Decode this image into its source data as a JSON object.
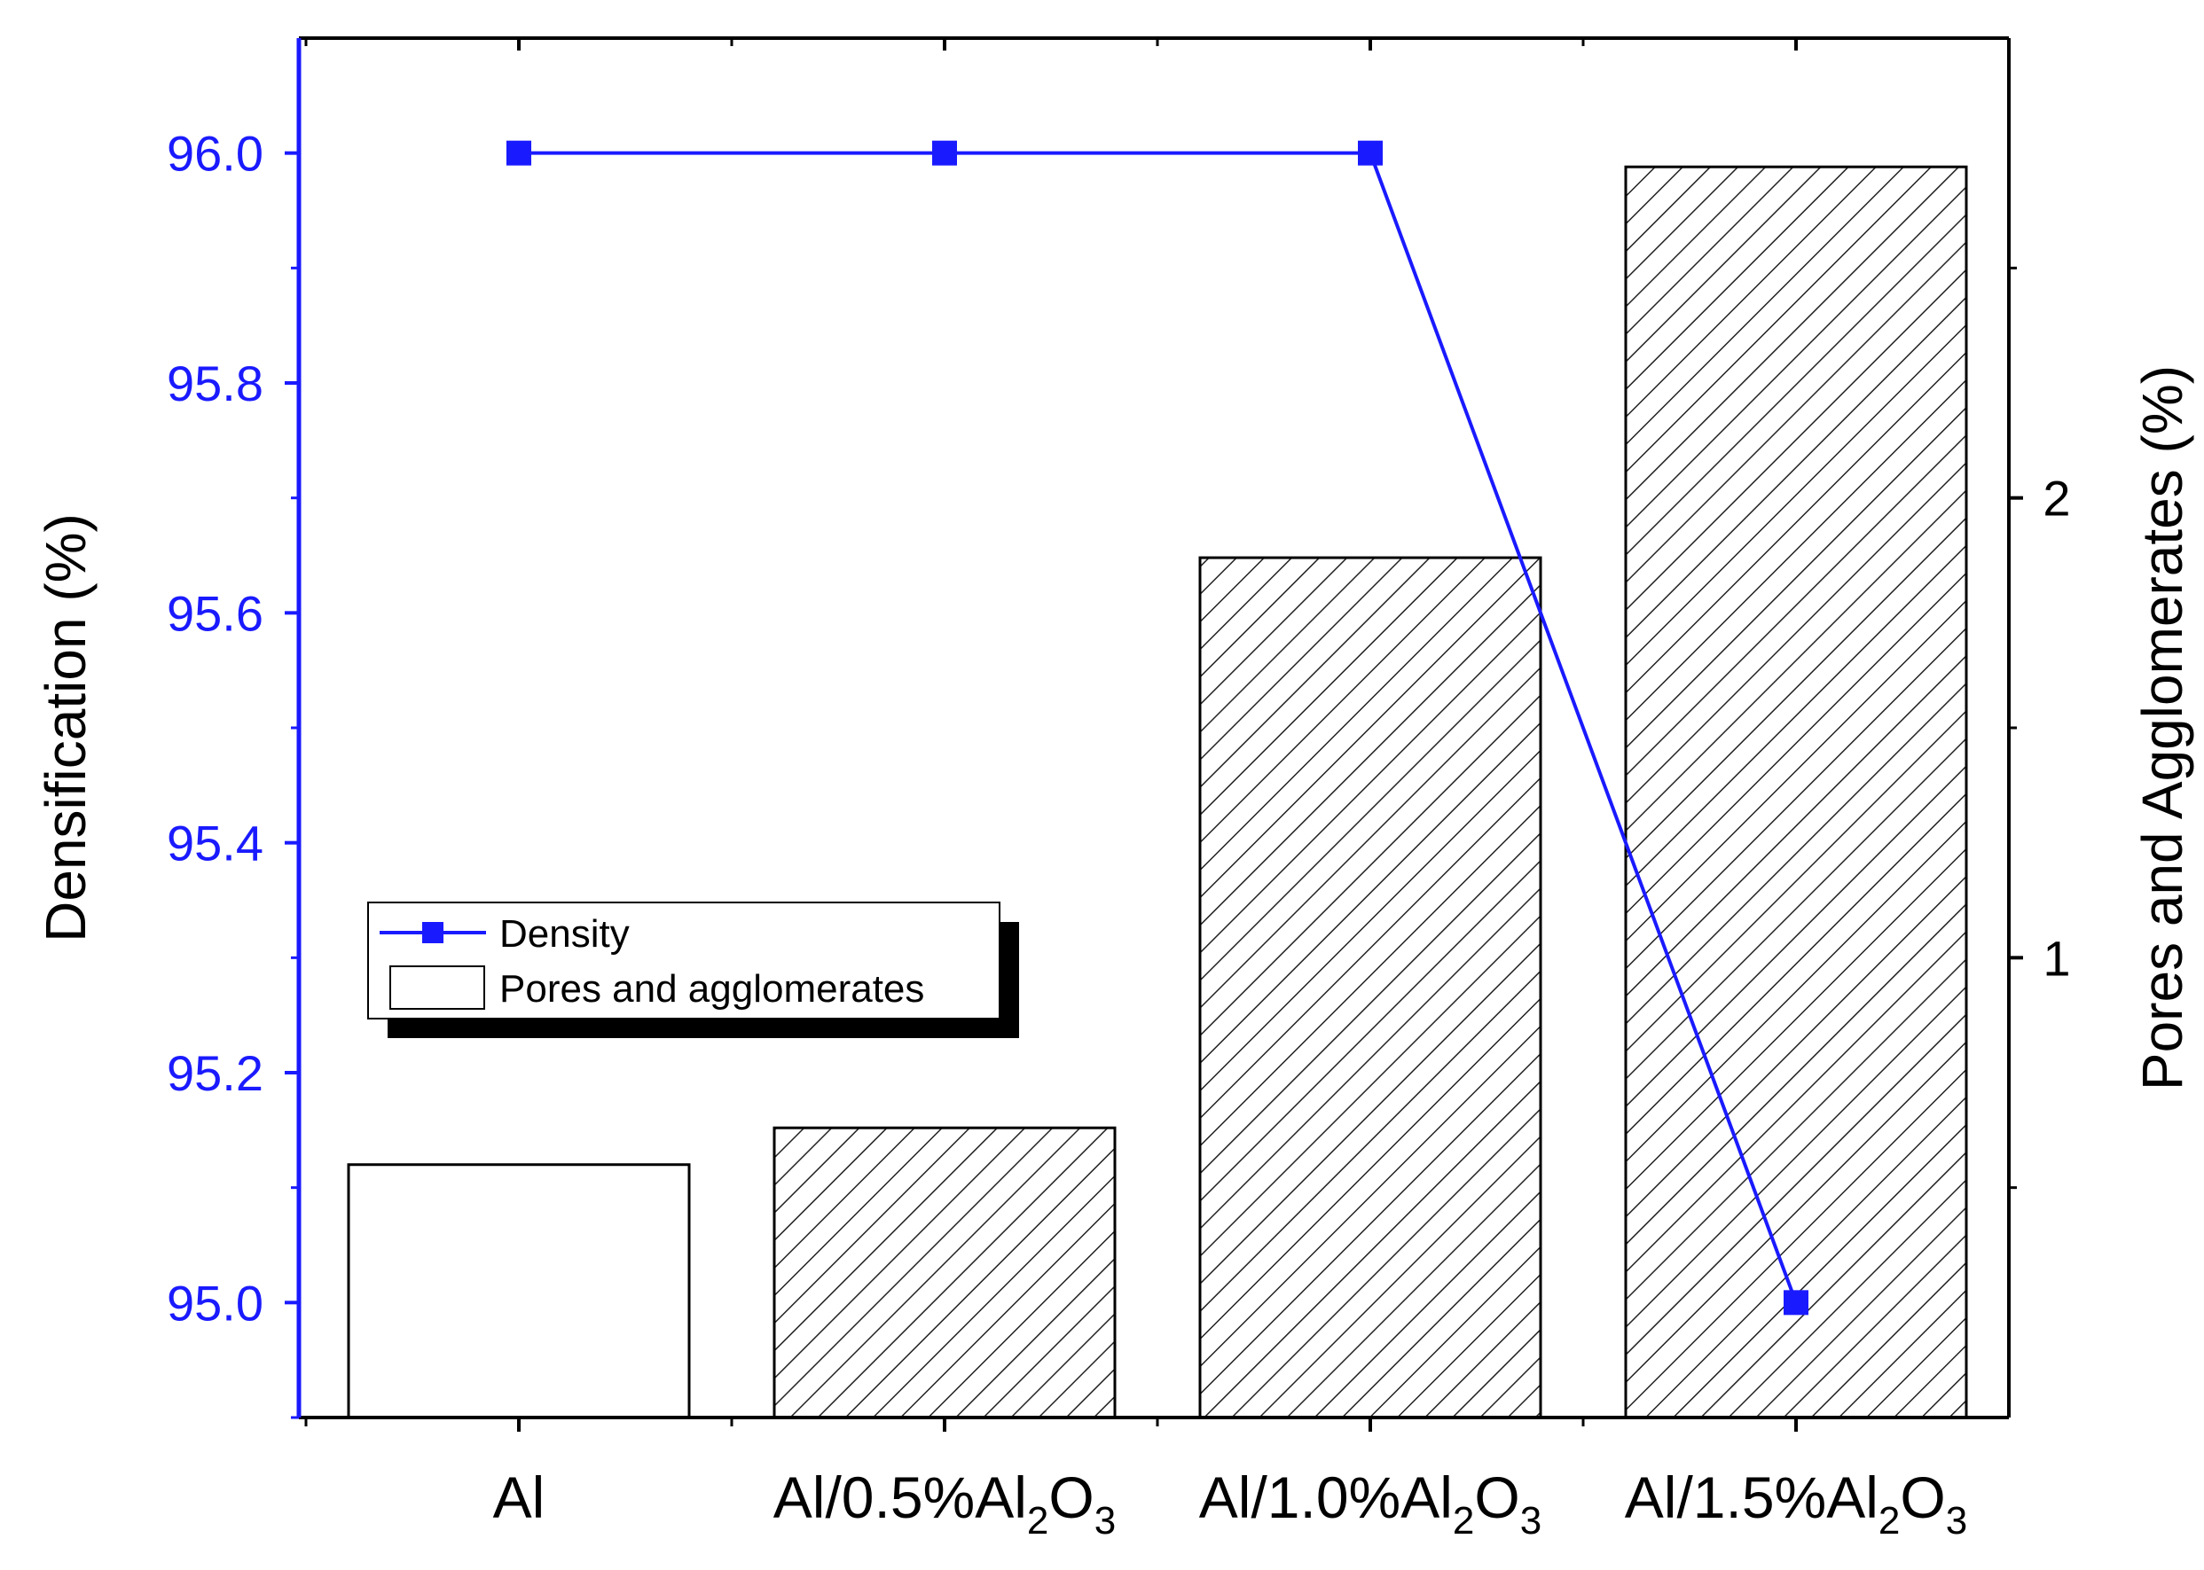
{
  "chart_data": {
    "type": "bar",
    "categories": [
      {
        "main": "Al",
        "sub": "",
        "tail": ""
      },
      {
        "main": "Al/0.5%Al",
        "sub": "2",
        "tail": "O",
        "sub2": "3"
      },
      {
        "main": "Al/1.0%Al",
        "sub": "2",
        "tail": "O",
        "sub2": "3"
      },
      {
        "main": "Al/1.5%Al",
        "sub": "2",
        "tail": "O",
        "sub2": "3"
      }
    ],
    "series": [
      {
        "name": "Density",
        "kind": "line",
        "axis": "left",
        "color": "#1a1aff",
        "marker": "square",
        "values": [
          96.0,
          96.0,
          96.0,
          95.0
        ]
      },
      {
        "name": "Pores and agglomerates",
        "kind": "bar",
        "axis": "right",
        "color": "#000000",
        "fill": [
          "none",
          "hatch",
          "hatch",
          "hatch"
        ],
        "values": [
          0.55,
          0.63,
          1.87,
          2.72
        ]
      }
    ],
    "ylabel": "Densification (%)",
    "ylabel_right": "Pores and Agglomerates (%)",
    "xlabel": "",
    "ylim": [
      94.9,
      96.1
    ],
    "ylim_right": [
      0.0,
      3.0
    ],
    "yticks": [
      "95.0",
      "95.2",
      "95.4",
      "95.6",
      "95.8",
      "96.0"
    ],
    "yticks_right": [
      "1",
      "2"
    ],
    "legend_position": "center-left",
    "grid": false,
    "left_axis_color": "#1a1aff"
  }
}
